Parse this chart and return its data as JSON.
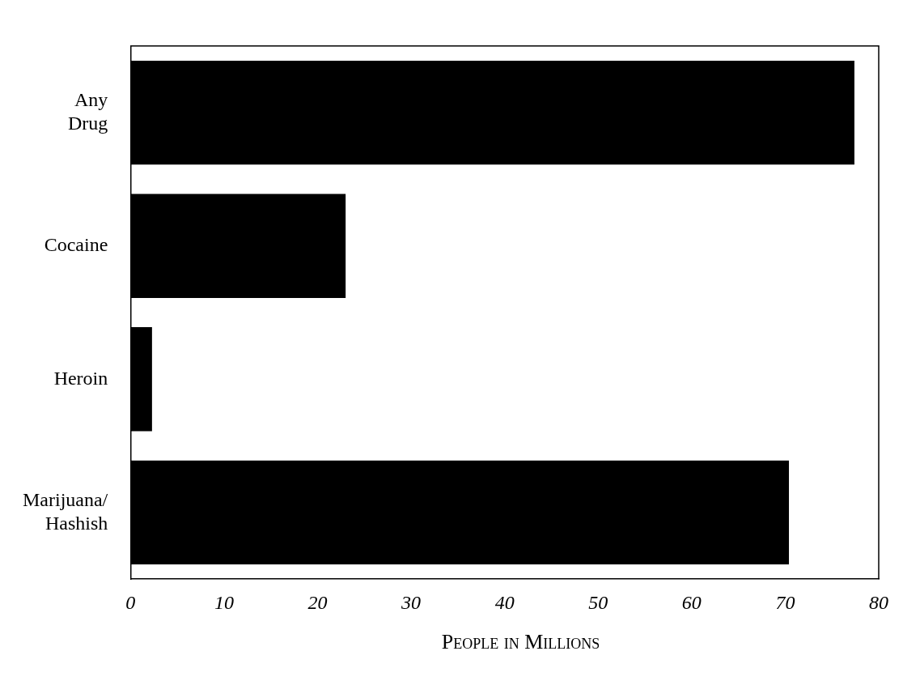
{
  "chart_data": {
    "type": "bar",
    "orientation": "horizontal",
    "xlabel": "People in Millions",
    "categories": [
      "Any Drug",
      "Cocaine",
      "Heroin",
      "Marijuana/ Hashish"
    ],
    "values": [
      77.4,
      23,
      2.3,
      70.4
    ],
    "color": "#000000",
    "xlim": [
      0,
      80
    ],
    "xticks": [
      0,
      10,
      20,
      30,
      40,
      50,
      60,
      70,
      80
    ],
    "grid": false,
    "legend": false
  }
}
